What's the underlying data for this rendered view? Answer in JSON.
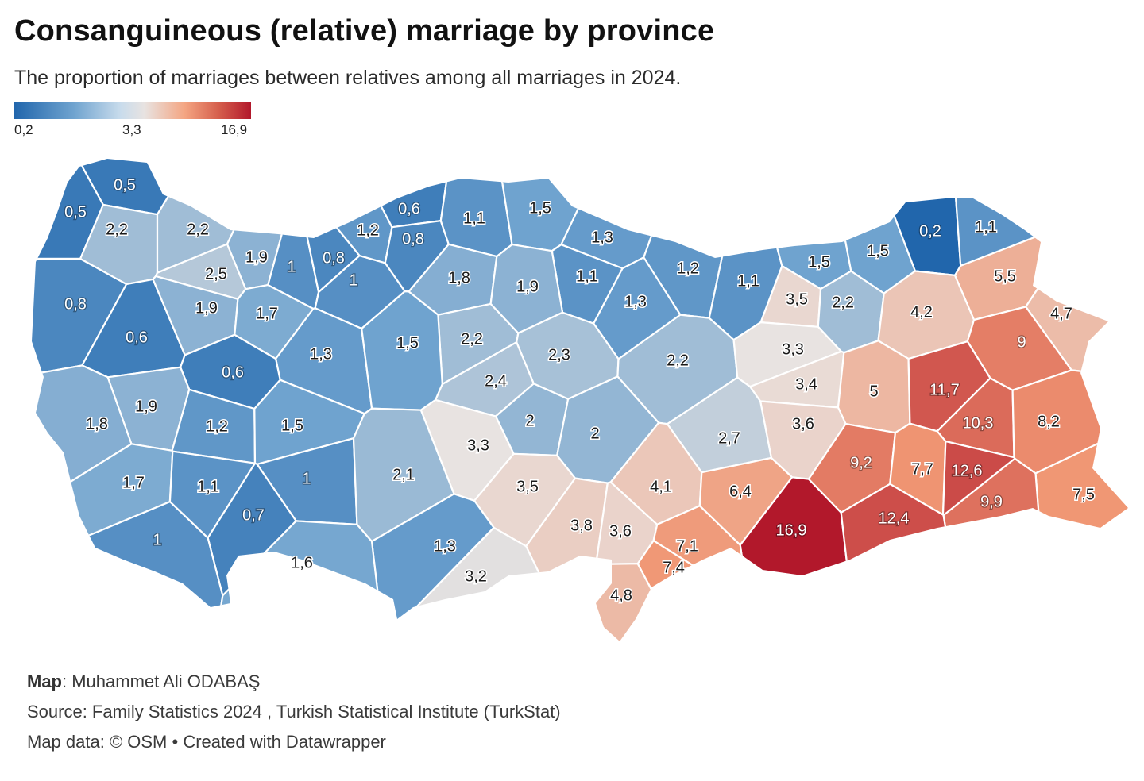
{
  "title": "Consanguineous (relative) marriage by province",
  "subtitle": "The proportion of marriages between relatives among all marriages in 2024.",
  "legend": {
    "min": "0,2",
    "mid": "3,3",
    "max": "16,9"
  },
  "colors": {
    "low": "#2166ac",
    "mid": "#e8e3e1",
    "high": "#b2182b"
  },
  "footer": {
    "map_label": "Map",
    "map_author": ": Muhammet Ali ODABAŞ",
    "source": "Source: Family Statistics 2024 , Turkish Statistical Institute (TurkStat)",
    "map_data": "Map data: © OSM • Created with Datawrapper"
  },
  "chart_data": {
    "type": "choropleth",
    "title": "Consanguineous (relative) marriage by province",
    "scale": {
      "min": 0.2,
      "mid": 3.3,
      "max": 16.9
    },
    "values": [
      {
        "label": "0,5",
        "value": 0.5
      },
      {
        "label": "0,5",
        "value": 0.5
      },
      {
        "label": "2,2",
        "value": 2.2
      },
      {
        "label": "2,2",
        "value": 2.2
      },
      {
        "label": "2,5",
        "value": 2.5
      },
      {
        "label": "1,9",
        "value": 1.9
      },
      {
        "label": "1",
        "value": 1.0
      },
      {
        "label": "0,8",
        "value": 0.8
      },
      {
        "label": "1",
        "value": 1.0
      },
      {
        "label": "1,2",
        "value": 1.2
      },
      {
        "label": "0,6",
        "value": 0.6
      },
      {
        "label": "0,8",
        "value": 0.8
      },
      {
        "label": "1,1",
        "value": 1.1
      },
      {
        "label": "1,5",
        "value": 1.5
      },
      {
        "label": "1,3",
        "value": 1.3
      },
      {
        "label": "1,2",
        "value": 1.2
      },
      {
        "label": "1,1",
        "value": 1.1
      },
      {
        "label": "1,3",
        "value": 1.3
      },
      {
        "label": "1,1",
        "value": 1.1
      },
      {
        "label": "1,5",
        "value": 1.5
      },
      {
        "label": "1,5",
        "value": 1.5
      },
      {
        "label": "0,2",
        "value": 0.2
      },
      {
        "label": "1,1",
        "value": 1.1
      },
      {
        "label": "5,5",
        "value": 5.5
      },
      {
        "label": "3,5",
        "value": 3.5
      },
      {
        "label": "2,2",
        "value": 2.2
      },
      {
        "label": "4,2",
        "value": 4.2
      },
      {
        "label": "4,7",
        "value": 4.7
      },
      {
        "label": "9",
        "value": 9.0
      },
      {
        "label": "0,8",
        "value": 0.8
      },
      {
        "label": "0,6",
        "value": 0.6
      },
      {
        "label": "1,9",
        "value": 1.9
      },
      {
        "label": "1,7",
        "value": 1.7
      },
      {
        "label": "1,8",
        "value": 1.8
      },
      {
        "label": "1,9",
        "value": 1.9
      },
      {
        "label": "2,2",
        "value": 2.2
      },
      {
        "label": "2,3",
        "value": 2.3
      },
      {
        "label": "2,2",
        "value": 2.2
      },
      {
        "label": "3,3",
        "value": 3.3
      },
      {
        "label": "1,3",
        "value": 1.3
      },
      {
        "label": "1,5",
        "value": 1.5
      },
      {
        "label": "0,6",
        "value": 0.6
      },
      {
        "label": "2,4",
        "value": 2.4
      },
      {
        "label": "3,4",
        "value": 3.4
      },
      {
        "label": "5",
        "value": 5.0
      },
      {
        "label": "11,7",
        "value": 11.7
      },
      {
        "label": "1,8",
        "value": 1.8
      },
      {
        "label": "1,9",
        "value": 1.9
      },
      {
        "label": "1,2",
        "value": 1.2
      },
      {
        "label": "1,5",
        "value": 1.5
      },
      {
        "label": "2",
        "value": 2.0
      },
      {
        "label": "2",
        "value": 2.0
      },
      {
        "label": "3,6",
        "value": 3.6
      },
      {
        "label": "10,3",
        "value": 10.3
      },
      {
        "label": "8,2",
        "value": 8.2
      },
      {
        "label": "3,3",
        "value": 3.3
      },
      {
        "label": "2,7",
        "value": 2.7
      },
      {
        "label": "9,2",
        "value": 9.2
      },
      {
        "label": "7,7",
        "value": 7.7
      },
      {
        "label": "12,6",
        "value": 12.6
      },
      {
        "label": "1,7",
        "value": 1.7
      },
      {
        "label": "1,1",
        "value": 1.1
      },
      {
        "label": "1",
        "value": 1.0
      },
      {
        "label": "2,1",
        "value": 2.1
      },
      {
        "label": "3,5",
        "value": 3.5
      },
      {
        "label": "4,1",
        "value": 4.1
      },
      {
        "label": "6,4",
        "value": 6.4
      },
      {
        "label": "7,5",
        "value": 7.5
      },
      {
        "label": "9,9",
        "value": 9.9
      },
      {
        "label": "0,7",
        "value": 0.7
      },
      {
        "label": "1",
        "value": 1.0
      },
      {
        "label": "3,8",
        "value": 3.8
      },
      {
        "label": "3,6",
        "value": 3.6
      },
      {
        "label": "16,9",
        "value": 16.9
      },
      {
        "label": "12,4",
        "value": 12.4
      },
      {
        "label": "1,3",
        "value": 1.3
      },
      {
        "label": "7,1",
        "value": 7.1
      },
      {
        "label": "7,4",
        "value": 7.4
      },
      {
        "label": "1,6",
        "value": 1.6
      },
      {
        "label": "3,2",
        "value": 3.2
      },
      {
        "label": "4,8",
        "value": 4.8
      }
    ]
  }
}
